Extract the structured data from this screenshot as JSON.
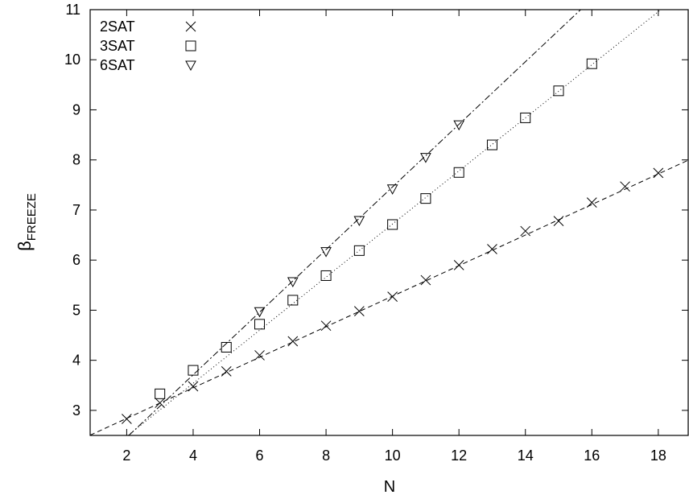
{
  "chart_data": {
    "type": "scatter",
    "xlabel": "N",
    "ylabel_symbol": "β",
    "ylabel_subscript": "FREEZE",
    "xlim": [
      0.9,
      18.9
    ],
    "ylim": [
      2.5,
      11
    ],
    "xticks": [
      2,
      4,
      6,
      8,
      10,
      12,
      14,
      16,
      18
    ],
    "yticks": [
      3,
      4,
      5,
      6,
      7,
      8,
      9,
      10,
      11
    ],
    "legend_position": "top-left",
    "grid": false,
    "series": [
      {
        "name": "2SAT",
        "marker": "x",
        "x": [
          2,
          3,
          4,
          5,
          6,
          7,
          8,
          9,
          10,
          11,
          12,
          13,
          14,
          15,
          16,
          17,
          18
        ],
        "y": [
          2.83,
          3.15,
          3.48,
          3.78,
          4.1,
          4.38,
          4.69,
          4.98,
          5.27,
          5.6,
          5.9,
          6.22,
          6.58,
          6.78,
          7.15,
          7.47,
          7.74
        ],
        "fit": {
          "slope": 0.305,
          "intercept": 2.23,
          "dash": "6,4"
        }
      },
      {
        "name": "3SAT",
        "marker": "square",
        "x": [
          3,
          4,
          5,
          6,
          7,
          8,
          9,
          10,
          11,
          12,
          13,
          14,
          15,
          16
        ],
        "y": [
          3.33,
          3.8,
          4.26,
          4.72,
          5.2,
          5.69,
          6.19,
          6.71,
          7.23,
          7.75,
          8.3,
          8.84,
          9.38,
          9.92
        ],
        "fit": {
          "slope": 0.53,
          "intercept": 1.42,
          "dash": "1,3"
        }
      },
      {
        "name": "6SAT",
        "marker": "triangle-down",
        "x": [
          6,
          7,
          8,
          9,
          10,
          11,
          12
        ],
        "y": [
          4.97,
          5.57,
          6.17,
          6.79,
          7.42,
          8.05,
          8.7
        ],
        "fit": {
          "slope": 0.625,
          "intercept": 1.21,
          "dash": "8,3,2,3"
        }
      }
    ]
  }
}
